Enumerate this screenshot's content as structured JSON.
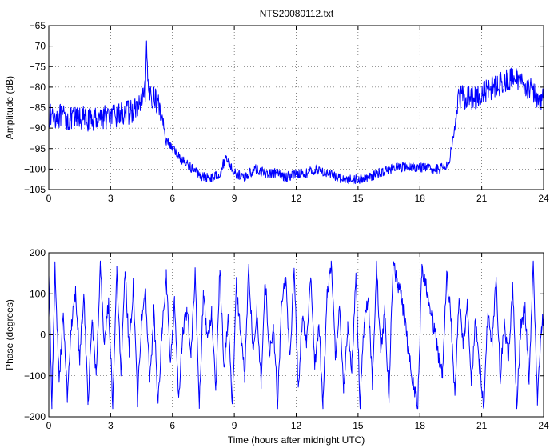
{
  "chart_data": [
    {
      "type": "line",
      "title": "NTS20080112.txt",
      "xlabel": "",
      "ylabel": "Amplitude (dB)",
      "xlim": [
        0,
        24
      ],
      "ylim": [
        -105,
        -65
      ],
      "xticks": [
        "0",
        "3",
        "6",
        "9",
        "12",
        "15",
        "18",
        "21",
        "24"
      ],
      "yticks": [
        "-65",
        "-70",
        "-75",
        "-80",
        "-85",
        "-90",
        "-95",
        "-100",
        "-105"
      ],
      "grid": true,
      "color": "#0000ff",
      "series": [
        {
          "x": [
            0,
            0.5,
            1,
            1.5,
            2,
            2.5,
            3,
            3.5,
            4,
            4.3,
            4.6,
            4.7,
            4.75,
            4.8,
            5,
            5.3,
            5.5,
            5.7,
            6,
            6.5,
            7,
            7.5,
            8,
            8.3,
            8.6,
            8.8,
            9,
            9.5,
            10,
            10.5,
            11,
            11.5,
            12,
            12.5,
            13,
            13.5,
            14,
            14.5,
            15,
            15.5,
            16,
            16.5,
            17,
            17.5,
            18,
            18.5,
            19,
            19.4,
            19.7,
            19.85,
            20,
            20.5,
            21,
            21.5,
            22,
            22.5,
            23,
            23.5,
            24
          ],
          "y": [
            -87,
            -87,
            -88,
            -87.5,
            -88,
            -87,
            -87.5,
            -86.5,
            -86,
            -85,
            -83,
            -80,
            -69.5,
            -81,
            -82,
            -84,
            -87,
            -93,
            -95,
            -98,
            -100,
            -102,
            -102,
            -101,
            -97,
            -99,
            -101,
            -102,
            -100,
            -101,
            -101,
            -102,
            -101,
            -101,
            -100,
            -101,
            -102,
            -102.5,
            -102.5,
            -102,
            -101,
            -100,
            -99.5,
            -99.5,
            -99.5,
            -100,
            -100,
            -98.5,
            -90,
            -83,
            -82.5,
            -82.5,
            -82,
            -80,
            -79,
            -78,
            -78.5,
            -81.5,
            -83
          ]
        }
      ]
    },
    {
      "type": "line",
      "title": "",
      "xlabel": "Time (hours after midnight UTC)",
      "ylabel": "Phase (degrees)",
      "xlim": [
        0,
        24
      ],
      "ylim": [
        -200,
        200
      ],
      "xticks": [
        "0",
        "3",
        "6",
        "9",
        "12",
        "15",
        "18",
        "21",
        "24"
      ],
      "yticks": [
        "200",
        "100",
        "0",
        "-100",
        "-200"
      ],
      "grid": true,
      "color": "#0000ff",
      "series": [
        {
          "x": [
            0,
            0.15,
            0.3,
            0.5,
            0.7,
            0.9,
            1.1,
            1.3,
            1.5,
            1.7,
            1.9,
            2.1,
            2.3,
            2.5,
            2.7,
            2.9,
            3.1,
            3.3,
            3.5,
            3.7,
            3.9,
            4.1,
            4.3,
            4.5,
            4.7,
            4.9,
            5.1,
            5.3,
            5.5,
            5.7,
            5.9,
            6.1,
            6.3,
            6.5,
            6.7,
            6.9,
            7.1,
            7.3,
            7.5,
            7.7,
            7.9,
            8.1,
            8.3,
            8.5,
            8.7,
            8.9,
            9.1,
            9.3,
            9.5,
            9.7,
            9.9,
            10.1,
            10.3,
            10.5,
            10.7,
            10.9,
            11.1,
            11.3,
            11.5,
            11.7,
            11.9,
            12.1,
            12.3,
            12.5,
            12.7,
            12.9,
            13.1,
            13.3,
            13.5,
            13.7,
            13.9,
            14.1,
            14.3,
            14.5,
            14.7,
            14.9,
            15.1,
            15.3,
            15.5,
            15.7,
            15.9,
            16.1,
            16.3,
            16.5,
            16.7,
            16.9,
            17.1,
            17.3,
            17.5,
            17.7,
            17.9,
            18.1,
            18.3,
            18.5,
            18.7,
            18.9,
            19.1,
            19.3,
            19.5,
            19.7,
            19.9,
            20.1,
            20.3,
            20.5,
            20.7,
            20.9,
            21.1,
            21.3,
            21.5,
            21.7,
            21.9,
            22.1,
            22.3,
            22.5,
            22.7,
            22.9,
            23.1,
            23.3,
            23.5,
            23.7,
            23.9,
            24
          ],
          "y": [
            150,
            -170,
            170,
            -120,
            60,
            -150,
            20,
            100,
            -60,
            110,
            -170,
            40,
            -100,
            170,
            -30,
            80,
            -170,
            150,
            -90,
            160,
            -40,
            120,
            -160,
            30,
            100,
            -120,
            60,
            -170,
            20,
            140,
            -60,
            80,
            -150,
            10,
            60,
            -40,
            150,
            -170,
            100,
            -20,
            60,
            -130,
            160,
            -80,
            40,
            -170,
            120,
            10,
            -100,
            170,
            -30,
            60,
            -120,
            140,
            -50,
            20,
            -170,
            80,
            130,
            -60,
            170,
            -130,
            40,
            -20,
            150,
            -80,
            30,
            -170,
            100,
            170,
            -50,
            60,
            -130,
            20,
            -80,
            140,
            -170,
            30,
            90,
            -120,
            170,
            -40,
            60,
            -160,
            180,
            130,
            90,
            20,
            -60,
            -130,
            -170,
            160,
            120,
            70,
            10,
            -50,
            -100,
            150,
            50,
            -150,
            100,
            -30,
            80,
            -120,
            40,
            -80,
            -170,
            60,
            -20,
            140,
            -100,
            30,
            -60,
            120,
            -170,
            20,
            70,
            -120,
            180,
            -160,
            20,
            50
          ]
        }
      ]
    }
  ]
}
